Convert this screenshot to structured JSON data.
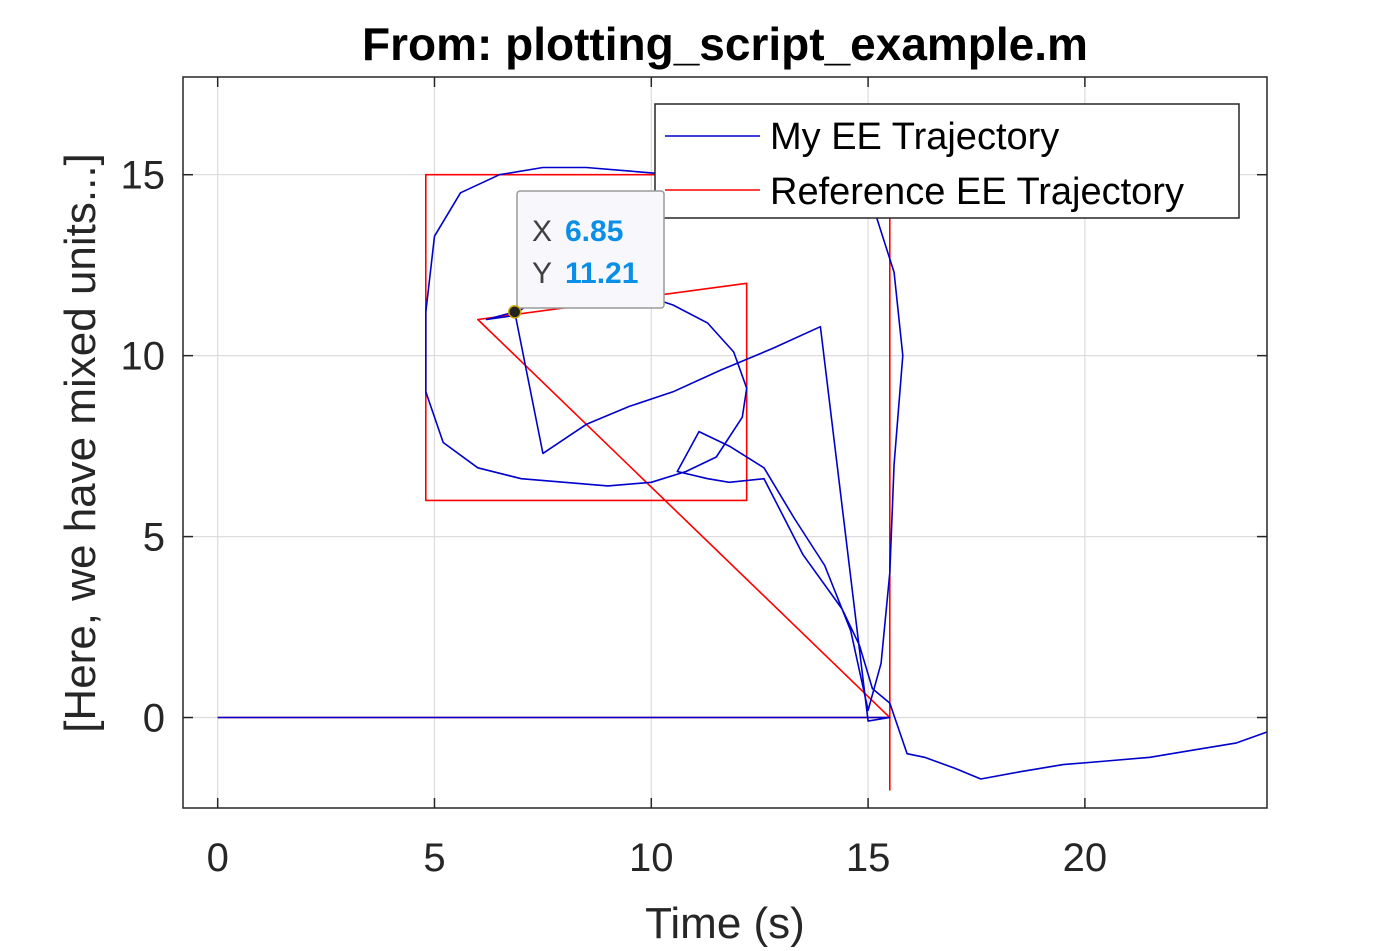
{
  "chart_data": {
    "type": "line",
    "title": "From: plotting_script_example.m",
    "xlabel": "Time (s)",
    "ylabel": "[Here, we have mixed units...]",
    "xlim": [
      -0.8,
      24.2
    ],
    "ylim": [
      -2.5,
      17.7
    ],
    "xticks": [
      0,
      5,
      10,
      15,
      20
    ],
    "yticks": [
      0,
      5,
      10,
      15
    ],
    "xtick_labels": [
      "0",
      "5",
      "10",
      "15",
      "20"
    ],
    "ytick_labels": [
      "0",
      "5",
      "10",
      "15"
    ],
    "grid": true,
    "legend_position": "top-right",
    "series": [
      {
        "name": "My EE Trajectory",
        "color": "#0000cc",
        "x": [
          0,
          15.4,
          15.5,
          15.0,
          13.9,
          12.8,
          11.6,
          10.5,
          9.5,
          8.5,
          7.5,
          6.85,
          6.2,
          6.8,
          7.5,
          8.5,
          9.5,
          10.5,
          11.3,
          11.9,
          12.2,
          12.1,
          11.5,
          10.8,
          10.0,
          9.0,
          8.0,
          7.0,
          6.0,
          5.2,
          4.8,
          4.8,
          5.0,
          5.6,
          6.5,
          7.5,
          8.5,
          9.5,
          10.5,
          11.5,
          12.5,
          13.5,
          14.5,
          15.2,
          15.6,
          15.8,
          15.6,
          15.5,
          15.3,
          15.0,
          14.6,
          14.0,
          13.3,
          12.6,
          11.8,
          11.1,
          10.6,
          11.3,
          11.8,
          12.6,
          13.5,
          14.4,
          14.8,
          15.1,
          15.5,
          15.9,
          16.3,
          17.0,
          17.6,
          18.5,
          19.5,
          20.5,
          21.5,
          22.5,
          23.5,
          24.2
        ],
        "y": [
          0,
          0,
          0,
          -0.1,
          10.8,
          10.2,
          9.6,
          9.0,
          8.6,
          8.1,
          7.3,
          11.21,
          11.0,
          11.1,
          11.7,
          11.9,
          11.8,
          11.4,
          10.9,
          10.1,
          9.1,
          8.3,
          7.2,
          6.8,
          6.5,
          6.4,
          6.5,
          6.6,
          6.9,
          7.6,
          9.0,
          11.2,
          13.3,
          14.5,
          15.0,
          15.2,
          15.2,
          15.1,
          15.0,
          15.0,
          15.0,
          15.0,
          14.7,
          13.8,
          12.3,
          10.0,
          7.0,
          4.0,
          1.5,
          0.2,
          2.4,
          4.2,
          5.5,
          6.9,
          7.5,
          7.9,
          6.8,
          6.6,
          6.5,
          6.6,
          4.5,
          3.0,
          2.0,
          0.8,
          0.4,
          -1.0,
          -1.1,
          -1.4,
          -1.7,
          -1.5,
          -1.3,
          -1.2,
          -1.1,
          -0.9,
          -0.7,
          -0.4
        ]
      },
      {
        "name": "Reference EE Trajectory",
        "color": "#ff0000",
        "x": [
          0,
          15.5,
          15.5,
          15.5,
          6.0,
          12.2,
          12.2,
          4.8,
          4.8,
          15.5,
          15.5
        ],
        "y": [
          0,
          0,
          -2.0,
          0,
          11.0,
          12.0,
          6.0,
          6.0,
          15.0,
          15.0,
          0
        ]
      }
    ],
    "datatip": {
      "x_key": "X",
      "y_key": "Y",
      "x_value": "6.85",
      "y_value": "11.21",
      "point": [
        6.85,
        11.21
      ]
    }
  }
}
